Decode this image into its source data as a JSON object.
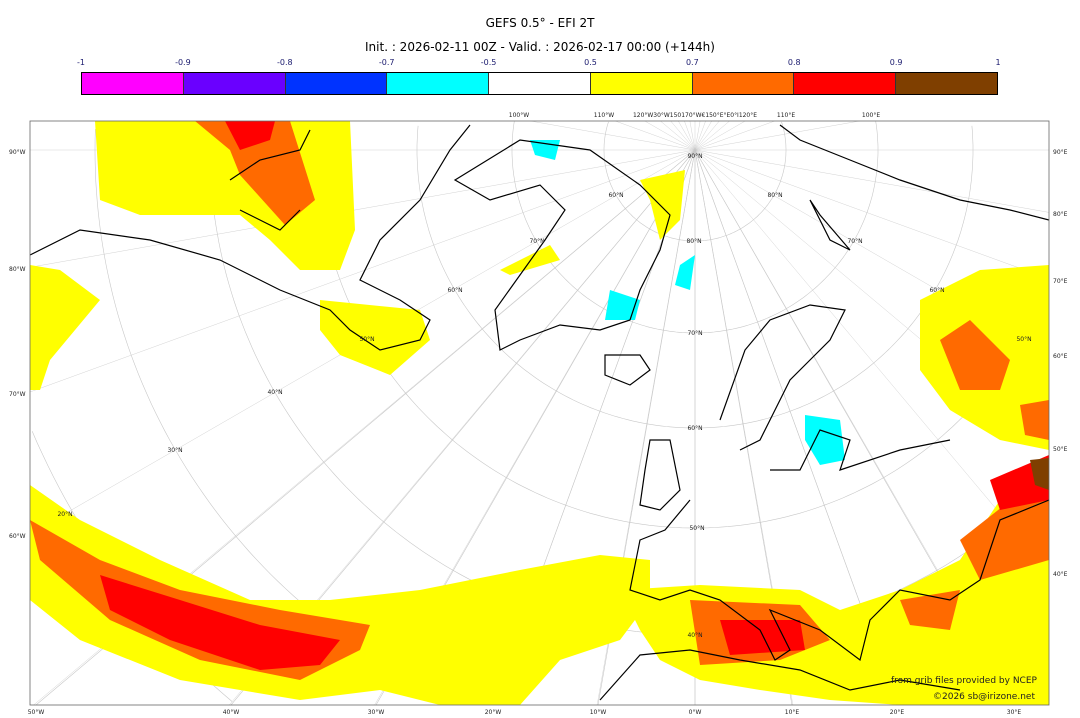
{
  "title": "GEFS 0.5° - EFI 2T",
  "subtitle": "Init. : 2026-02-11 00Z - Valid. : 2026-02-17 00:00 (+144h)",
  "colorbar": {
    "ticks": [
      "-1",
      "-0.9",
      "-0.8",
      "-0.7",
      "-0.5",
      "0.5",
      "0.7",
      "0.8",
      "0.9",
      "1"
    ],
    "colors": [
      "#ff00ff",
      "#6a00ff",
      "#0033ff",
      "#00ffff",
      "#ffffff",
      "#ffff00",
      "#ff6a00",
      "#ff0000",
      "#7f3f00"
    ]
  },
  "axes": {
    "left": [
      "90°W",
      "80°W",
      "70°W",
      "60°W"
    ],
    "right": [
      "90°E",
      "80°E",
      "70°E",
      "60°E",
      "50°E",
      "40°E"
    ],
    "bottom": [
      "50°W",
      "40°W",
      "30°W",
      "20°W",
      "10°W",
      "0°W",
      "10°E",
      "20°E",
      "30°E"
    ],
    "top": [
      "100°W",
      "110°W",
      "120°W30°W150170°W€150°E°E0°I120°E",
      "110°E",
      "100°E"
    ]
  },
  "grid_labels": [
    "90°N",
    "80°N",
    "70°N",
    "60°N",
    "50°N",
    "40°N",
    "60°N",
    "70°N",
    "60°N",
    "50°N",
    "40°N",
    "30°N",
    "20°N",
    "80°N",
    "70°N",
    "60°N",
    "50°N"
  ],
  "credits": {
    "source": "from grib files provided by NCEP",
    "copyright": "©2026 sb@irizone.net"
  }
}
